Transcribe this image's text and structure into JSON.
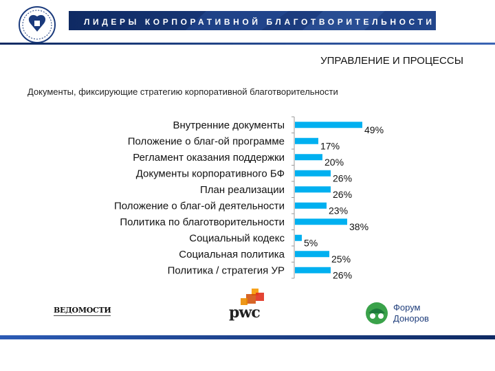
{
  "header": {
    "banner_title": "ЛИДЕРЫ КОРПОРАТИВНОЙ БЛАГОТВОРИТЕЛЬНОСТИ"
  },
  "section_title": "УПРАВЛЕНИЕ И ПРОЦЕССЫ",
  "chart_subtitle": "Документы, фиксирующие стратегию корпоративной благотворительности",
  "chart_data": {
    "type": "bar",
    "orientation": "horizontal",
    "categories": [
      "Внутренние документы",
      "Положение о благ-ой программе",
      "Регламент оказания поддержки",
      "Документы корпоративного БФ",
      "План реализации",
      "Положение о благ-ой деятельности",
      "Политика по благотворительности",
      "Социальный кодекс",
      "Социальная политика",
      "Политика / стратегия УР"
    ],
    "values": [
      49,
      17,
      20,
      26,
      26,
      23,
      38,
      5,
      25,
      26
    ],
    "value_labels": [
      "49%",
      "17%",
      "20%",
      "26%",
      "26%",
      "23%",
      "38%",
      "5%",
      "25%",
      "26%"
    ],
    "xlim": [
      0,
      100
    ],
    "bar_color": "#00b0f0",
    "grid": false,
    "legend": "none"
  },
  "footer": {
    "vedomosti": "ВЕДОМОСТИ",
    "pwc": "pwc",
    "forum_line1": "Форум",
    "forum_line2": "Доноров"
  },
  "colors": {
    "banner": "#1a3a7c",
    "bar": "#00b0f0",
    "rule": "#2c5bb5"
  }
}
